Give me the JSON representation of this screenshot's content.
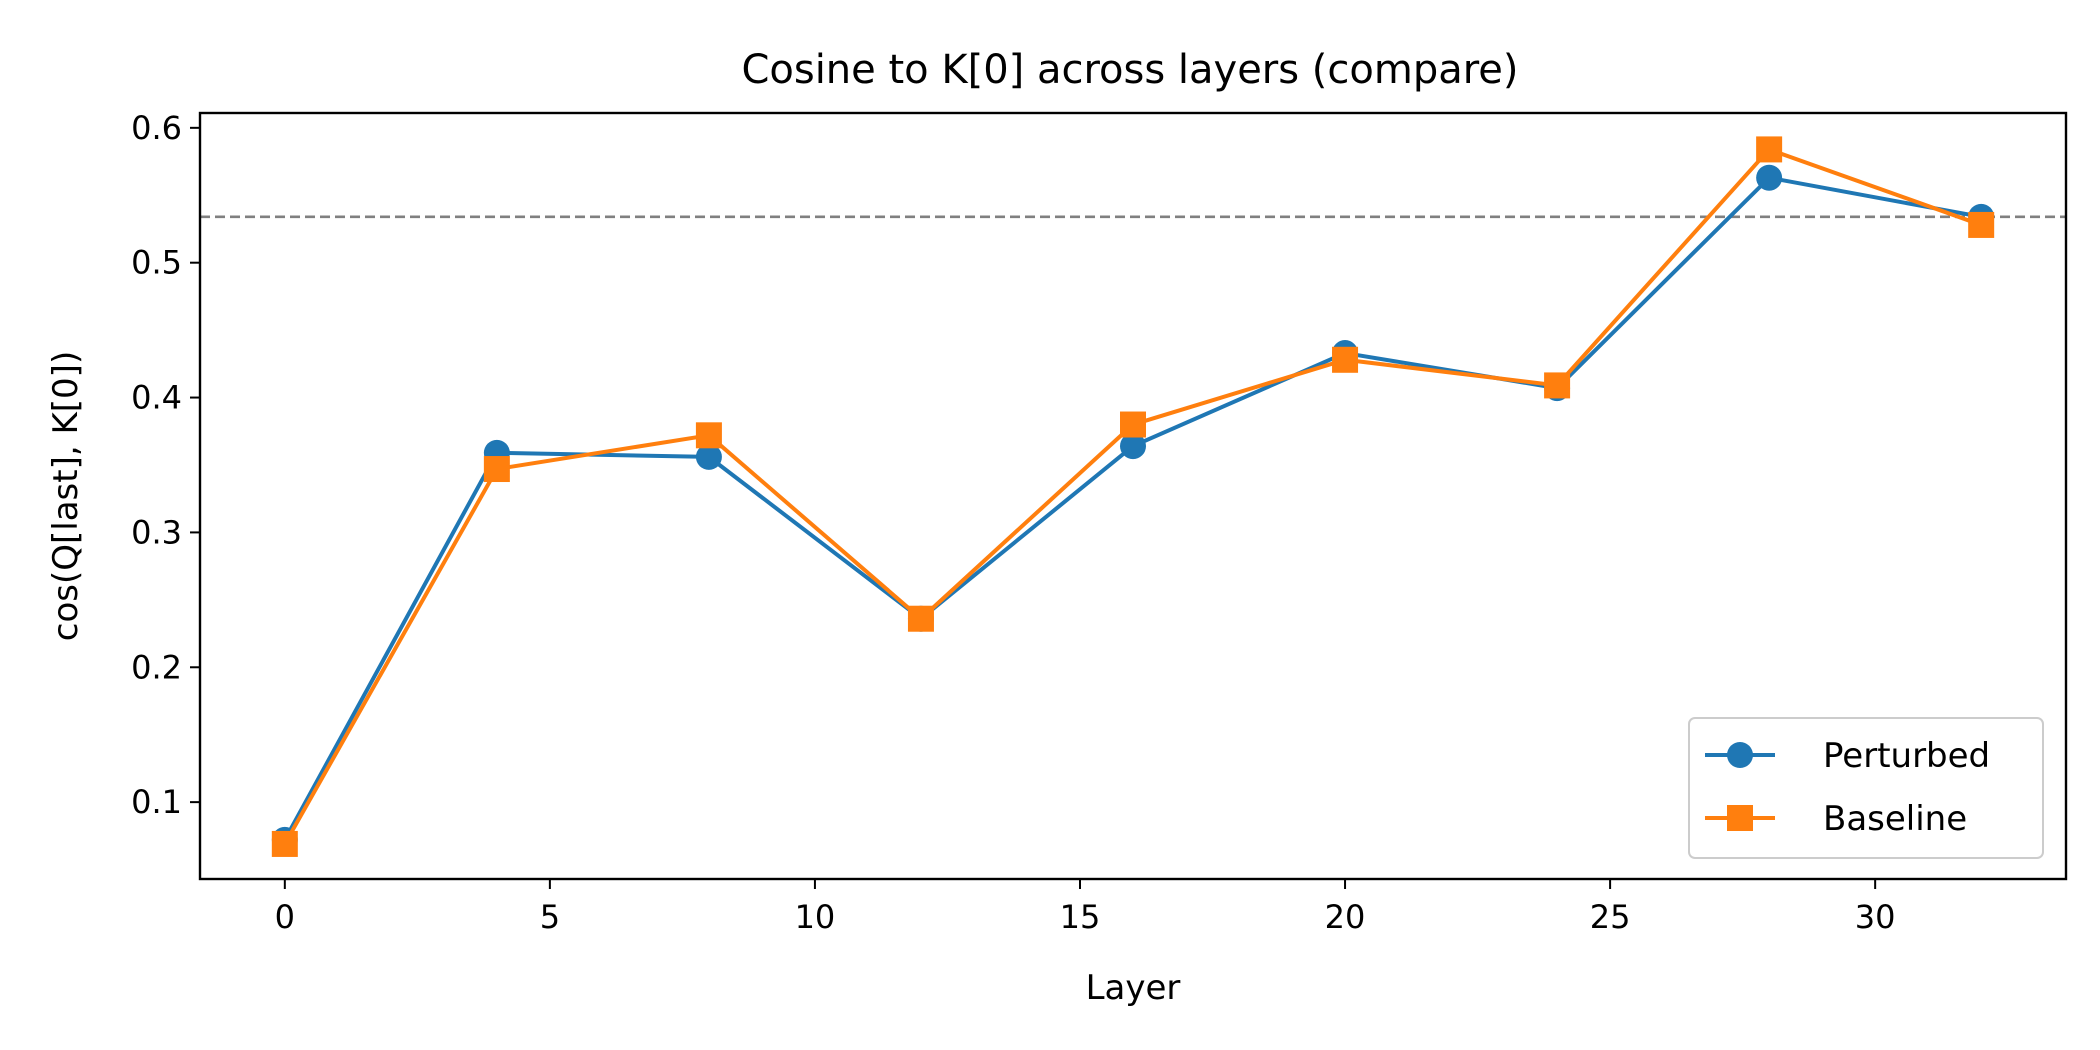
{
  "chart_data": {
    "type": "line",
    "title": "Cosine to K[0] across layers (compare)",
    "xlabel": "Layer",
    "ylabel": "cos(Q[last], K[0])",
    "xlim": [
      -1.6,
      33.6
    ],
    "ylim": [
      0.043,
      0.611
    ],
    "xticks": [
      "0",
      "5",
      "10",
      "15",
      "20",
      "25",
      "30"
    ],
    "yticks": [
      "0.1",
      "0.2",
      "0.3",
      "0.4",
      "0.5",
      "0.6"
    ],
    "x": [
      0,
      4,
      8,
      12,
      16,
      20,
      24,
      28,
      32
    ],
    "reference_line": {
      "y": 0.534,
      "style": "dashed",
      "color": "#808080"
    },
    "grid": false,
    "legend_position": "lower-right",
    "series": [
      {
        "name": "Perturbed",
        "color": "#1f77b4",
        "marker": "circle",
        "values": [
          0.072,
          0.359,
          0.356,
          0.236,
          0.364,
          0.433,
          0.407,
          0.563,
          0.534
        ]
      },
      {
        "name": "Baseline",
        "color": "#ff7f0e",
        "marker": "square",
        "values": [
          0.069,
          0.347,
          0.372,
          0.236,
          0.38,
          0.428,
          0.409,
          0.584,
          0.528
        ]
      }
    ]
  }
}
